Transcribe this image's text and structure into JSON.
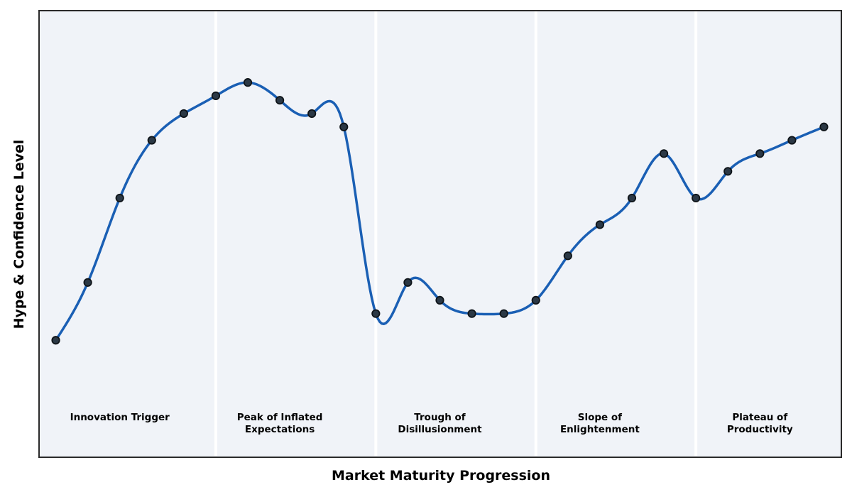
{
  "chart_data": {
    "type": "line",
    "title": "",
    "xlabel": "Market Maturity Progression",
    "ylabel": "Hype & Confidence Level",
    "x": [
      1,
      2,
      3,
      4,
      5,
      6,
      7,
      8,
      9,
      10,
      11,
      12,
      13,
      14,
      15,
      16,
      17,
      18,
      19,
      20,
      21,
      22,
      23,
      24,
      25
    ],
    "values": [
      26,
      39,
      58,
      71,
      77,
      81,
      84,
      80,
      77,
      74,
      32,
      39,
      35,
      32,
      32,
      35,
      45,
      52,
      58,
      68,
      58,
      64,
      68,
      71,
      74
    ],
    "xlim": [
      0.5,
      25.5
    ],
    "ylim": [
      0,
      100
    ],
    "grid": false,
    "legend": false,
    "ticks_visible": false,
    "smoothing": "natural-cubic-spline",
    "markers": true,
    "marker_radius": 5.2,
    "line_width": 3.5,
    "phase_boundaries_x": [
      6,
      11,
      16,
      21
    ],
    "phases": [
      {
        "label": "Innovation Trigger",
        "center_x": 3
      },
      {
        "label": "Peak of Inflated\nExpectations",
        "center_x": 8
      },
      {
        "label": "Trough of\nDisillusionment",
        "center_x": 13
      },
      {
        "label": "Slope of\nEnlightenment",
        "center_x": 18
      },
      {
        "label": "Plateau of\nProductivity",
        "center_x": 23
      }
    ],
    "colors": {
      "page_bg": "#ffffff",
      "plot_bg": "#f0f3f8",
      "border": "#2a2a2a",
      "line": "#1a5fb4",
      "marker_fill": "#2b3845",
      "marker_edge": "#0e1318",
      "divider": "#ffffff",
      "text": "#000000"
    }
  }
}
